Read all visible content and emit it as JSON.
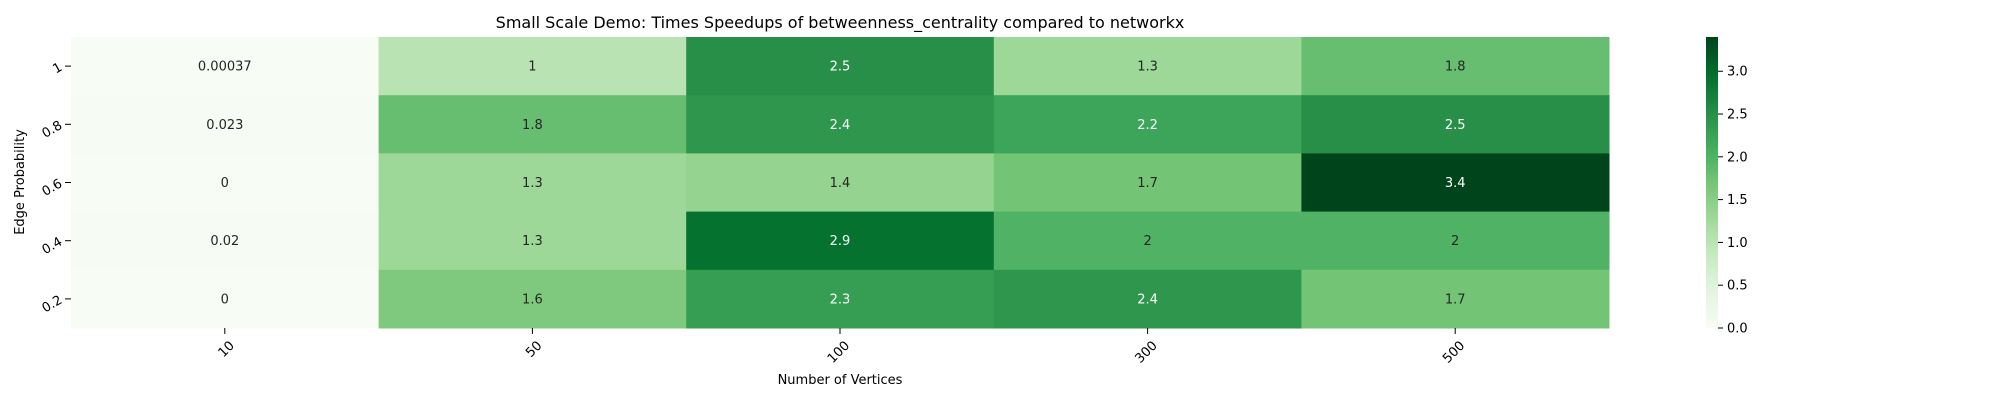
{
  "chart_data": {
    "type": "heatmap",
    "title": "Small Scale Demo: Times Speedups of betweenness_centrality compared to networkx",
    "xlabel": "Number of Vertices",
    "ylabel": "Edge Probability",
    "x_categories": [
      "10",
      "50",
      "100",
      "300",
      "500"
    ],
    "y_categories": [
      "1",
      "0.8",
      "0.6",
      "0.4",
      "0.2"
    ],
    "values": [
      [
        0.00037,
        1,
        2.5,
        1.3,
        1.8
      ],
      [
        0.023,
        1.8,
        2.4,
        2.2,
        2.5
      ],
      [
        0,
        1.3,
        1.4,
        1.7,
        3.4
      ],
      [
        0.02,
        1.3,
        2.9,
        2,
        2
      ],
      [
        0,
        1.6,
        2.3,
        2.4,
        1.7
      ]
    ],
    "value_labels": [
      [
        "0.00037",
        "1",
        "2.5",
        "1.3",
        "1.8"
      ],
      [
        "0.023",
        "1.8",
        "2.4",
        "2.2",
        "2.5"
      ],
      [
        "0",
        "1.3",
        "1.4",
        "1.7",
        "3.4"
      ],
      [
        "0.02",
        "1.3",
        "2.9",
        "2",
        "2"
      ],
      [
        "0",
        "1.6",
        "2.3",
        "2.4",
        "1.7"
      ]
    ],
    "colormap": "Greens",
    "colorbar": {
      "min": 0,
      "max": 3.4,
      "ticks": [
        0,
        0.5,
        1,
        1.5,
        2,
        2.5,
        3
      ],
      "tick_labels": [
        "0.0",
        "0.5",
        "1.0",
        "1.5",
        "2.0",
        "2.5",
        "3.0"
      ]
    },
    "annotation_colors": {
      "dark_text": "#262626",
      "light_text": "#ffffff"
    }
  }
}
